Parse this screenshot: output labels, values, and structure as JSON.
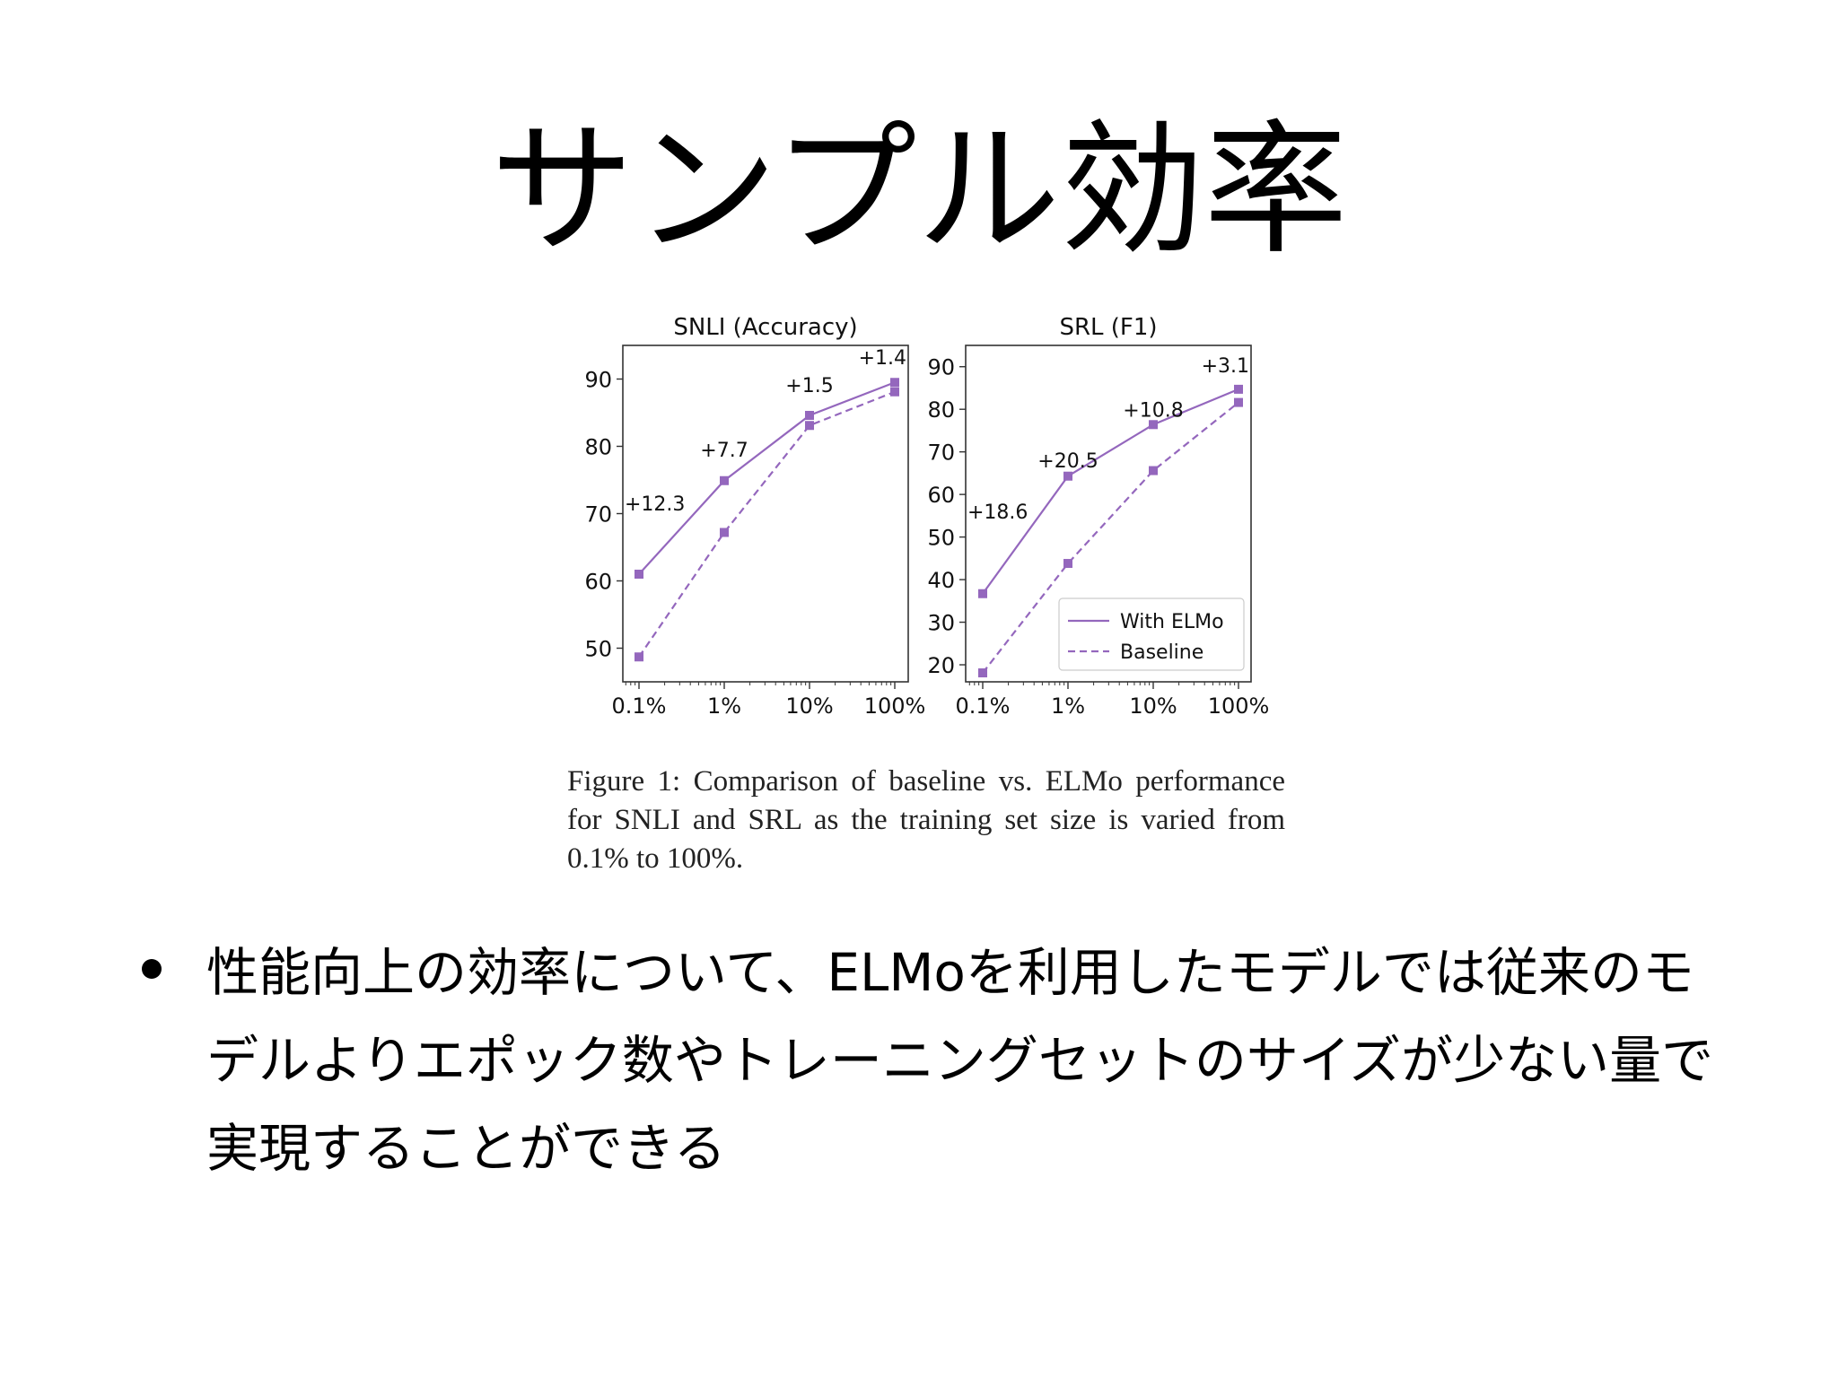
{
  "slide": {
    "title": "サンプル効率",
    "caption": "Figure 1: Comparison of baseline vs. ELMo performance for SNLI and SRL as the training set size is varied from 0.1% to 100%.",
    "bullet": "性能向上の効率について、ELMoを利用したモデルでは従来のモデルよりエポック数やトレーニングセットのサイズが少ない量で実現することができる"
  },
  "colors": {
    "series": "#9467bd",
    "text": "#000000",
    "axis": "#333333"
  },
  "chart_data": [
    {
      "type": "line",
      "title": "SNLI (Accuracy)",
      "x": [
        "0.1%",
        "1%",
        "10%",
        "100%"
      ],
      "xscale": "log",
      "yticks": [
        "50",
        "60",
        "70",
        "80",
        "90"
      ],
      "ylim": [
        45,
        95
      ],
      "series": [
        {
          "name": "With ELMo",
          "style": "solid",
          "values": [
            61.0,
            74.9,
            84.6,
            89.5
          ]
        },
        {
          "name": "Baseline",
          "style": "dashed",
          "values": [
            48.7,
            67.2,
            83.1,
            88.1
          ]
        }
      ],
      "annotations": [
        {
          "x": "0.1%",
          "y": 70.5,
          "text": "+12.3"
        },
        {
          "x": "1%",
          "y": 78.5,
          "text": "+7.7"
        },
        {
          "x": "10%",
          "y": 88.1,
          "text": "+1.5"
        },
        {
          "x": "100%",
          "y": 92.2,
          "text": "+1.4"
        }
      ]
    },
    {
      "type": "line",
      "title": "SRL (F1)",
      "x": [
        "0.1%",
        "1%",
        "10%",
        "100%"
      ],
      "xscale": "log",
      "yticks": [
        "20",
        "30",
        "40",
        "50",
        "60",
        "70",
        "80",
        "90"
      ],
      "ylim": [
        16,
        95
      ],
      "legend": "lower-right",
      "series": [
        {
          "name": "With ELMo",
          "style": "solid",
          "values": [
            36.7,
            64.3,
            76.4,
            84.7
          ]
        },
        {
          "name": "Baseline",
          "style": "dashed",
          "values": [
            18.1,
            43.8,
            65.6,
            81.6
          ]
        }
      ],
      "annotations": [
        {
          "x": "0.1%",
          "y": 54.3,
          "text": "+18.6"
        },
        {
          "x": "1%",
          "y": 66.3,
          "text": "+20.5"
        },
        {
          "x": "10%",
          "y": 78.3,
          "text": "+10.8"
        },
        {
          "x": "100%",
          "y": 88.7,
          "text": "+3.1"
        }
      ]
    }
  ]
}
